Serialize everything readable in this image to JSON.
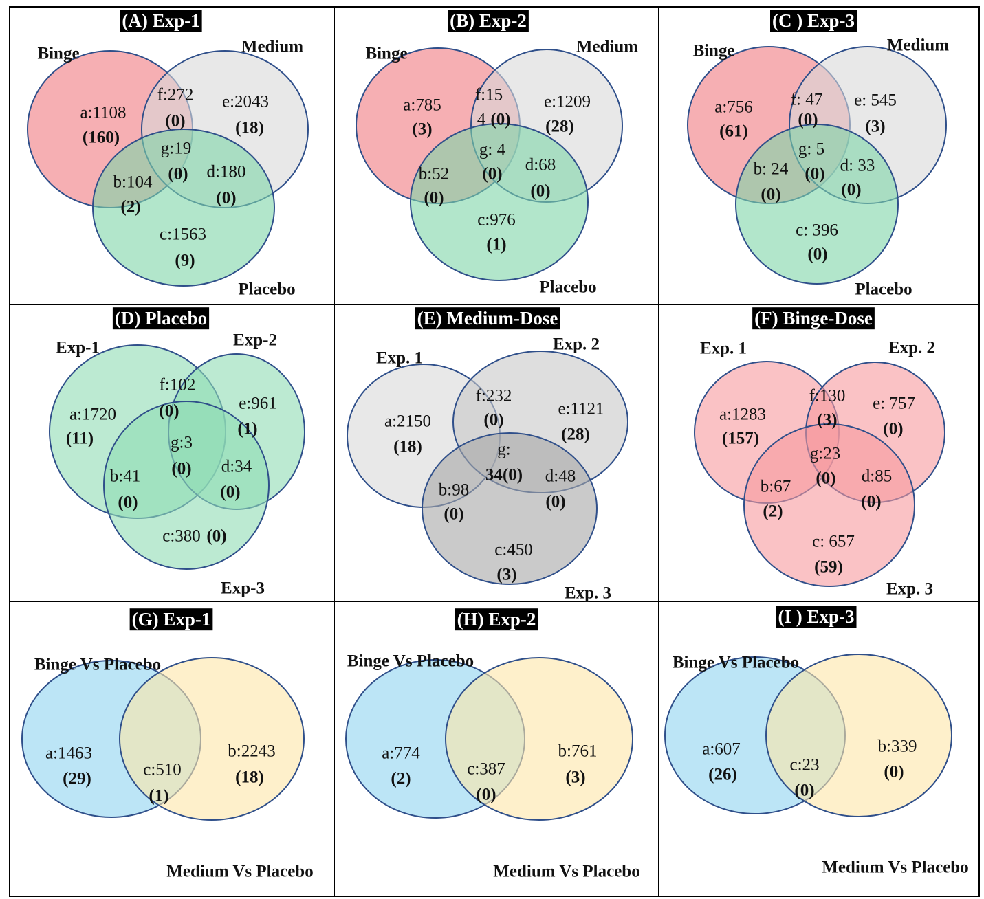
{
  "panels": [
    {
      "title": "(A) Exp-1",
      "set_labels": [
        "Binge",
        "Medium",
        "Placebo"
      ],
      "colors": [
        "#f07a80",
        "#d9d9d9",
        "#7fd6a8"
      ],
      "regions": [
        {
          "label": "a:1108",
          "count": "(160)"
        },
        {
          "label": "f:272",
          "count": "(0)"
        },
        {
          "label": "e:2043",
          "count": "(18)"
        },
        {
          "label": "g:19",
          "count": "(0)"
        },
        {
          "label": "b:104",
          "count": "(2)"
        },
        {
          "label": "d:180",
          "count": "(0)"
        },
        {
          "label": "c:1563",
          "count": "(9)"
        }
      ]
    },
    {
      "title": "(B) Exp-2",
      "set_labels": [
        "Binge",
        "Medium",
        "Placebo"
      ],
      "colors": [
        "#f07a80",
        "#d9d9d9",
        "#7fd6a8"
      ],
      "regions": [
        {
          "label": "a:785",
          "count": "(3)"
        },
        {
          "label": "f:15",
          "count": ""
        },
        {
          "label": "e:1209",
          "count": "(28)"
        },
        {
          "label": "g: 4",
          "count": "(0)"
        },
        {
          "label": "b:52",
          "count": "(0)"
        },
        {
          "label": "d:68",
          "count": "(0)"
        },
        {
          "label": "c:976",
          "count": "(1)"
        },
        {
          "label": "4",
          "count": "(0)"
        }
      ]
    },
    {
      "title": "(C ) Exp-3",
      "set_labels": [
        "Binge",
        "Medium",
        "Placebo"
      ],
      "colors": [
        "#f07a80",
        "#d9d9d9",
        "#7fd6a8"
      ],
      "regions": [
        {
          "label": "a:756",
          "count": "(61)"
        },
        {
          "label": "f: 47",
          "count": "(0)"
        },
        {
          "label": "e: 545",
          "count": "(3)"
        },
        {
          "label": "g: 5",
          "count": "(0)"
        },
        {
          "label": "b: 24",
          "count": "(0)"
        },
        {
          "label": "d: 33",
          "count": "(0)"
        },
        {
          "label": "c: 396",
          "count": "(0)"
        }
      ]
    },
    {
      "title": "(D) Placebo",
      "set_labels": [
        "Exp-1",
        "Exp-2",
        "Exp-3"
      ],
      "colors": [
        "#8fdcb4",
        "#8fdcb4",
        "#8fdcb4"
      ],
      "regions": [
        {
          "label": "a:1720",
          "count": "(11)"
        },
        {
          "label": "f:102",
          "count": "(0)"
        },
        {
          "label": "e:961",
          "count": "(1)"
        },
        {
          "label": "g:3",
          "count": "(0)"
        },
        {
          "label": "b:41",
          "count": "(0)"
        },
        {
          "label": "d:34",
          "count": "(0)"
        },
        {
          "label": "c:380",
          "count": "(0)"
        }
      ]
    },
    {
      "title": "(E) Medium-Dose",
      "set_labels": [
        "Exp. 1",
        "Exp. 2",
        "Exp. 3"
      ],
      "colors": [
        "#d9d9d9",
        "#c8c8c8",
        "#a6a6a6"
      ],
      "regions": [
        {
          "label": "a:2150",
          "count": "(18)"
        },
        {
          "label": "f:232",
          "count": "(0)"
        },
        {
          "label": "e:1121",
          "count": "(28)"
        },
        {
          "label": "g:",
          "count": "34(0)"
        },
        {
          "label": "b:98",
          "count": "(0)"
        },
        {
          "label": "d:48",
          "count": "(0)"
        },
        {
          "label": "c:450",
          "count": "(3)"
        }
      ]
    },
    {
      "title": "(F) Binge-Dose",
      "set_labels": [
        "Exp. 1",
        "Exp. 2",
        "Exp. 3"
      ],
      "colors": [
        "#f79a9e",
        "#f79a9e",
        "#f79a9e"
      ],
      "regions": [
        {
          "label": "a:1283",
          "count": "(157)"
        },
        {
          "label": "f:130",
          "count": "(3)"
        },
        {
          "label": "e: 757",
          "count": "(0)"
        },
        {
          "label": "g:23",
          "count": "(0)"
        },
        {
          "label": "b:67",
          "count": "(2)"
        },
        {
          "label": "d:85",
          "count": "(0)"
        },
        {
          "label": "c: 657",
          "count": "(59)"
        }
      ]
    },
    {
      "title": "(G) Exp-1",
      "set_labels": [
        "Binge Vs Placebo",
        "Medium Vs Placebo"
      ],
      "colors": [
        "#8fd3f0",
        "#fde6a8"
      ],
      "regions": [
        {
          "label": "a:1463",
          "count": "(29)"
        },
        {
          "label": "c:510",
          "count": "(1)"
        },
        {
          "label": "b:2243",
          "count": "(18)"
        }
      ]
    },
    {
      "title": "(H) Exp-2",
      "set_labels": [
        "Binge Vs Placebo",
        "Medium Vs Placebo"
      ],
      "colors": [
        "#8fd3f0",
        "#fde6a8"
      ],
      "regions": [
        {
          "label": "a:774",
          "count": "(2)"
        },
        {
          "label": "c:387",
          "count": "(0)"
        },
        {
          "label": "b:761",
          "count": "(3)"
        }
      ]
    },
    {
      "title": "(I ) Exp-3",
      "set_labels": [
        "Binge Vs Placebo",
        "Medium Vs Placebo"
      ],
      "colors": [
        "#8fd3f0",
        "#fde6a8"
      ],
      "regions": [
        {
          "label": "a:607",
          "count": "(26)"
        },
        {
          "label": "c:23",
          "count": "(0)"
        },
        {
          "label": "b:339",
          "count": "(0)"
        }
      ]
    }
  ]
}
